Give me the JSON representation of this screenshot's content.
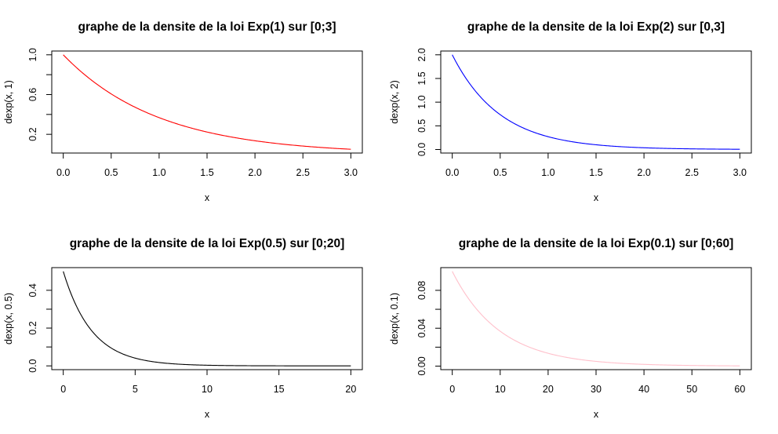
{
  "chart_data": [
    {
      "type": "line",
      "title": "graphe de la densite de la loi Exp(1) sur [0;3]",
      "xlabel": "x",
      "ylabel": "dexp(x, 1)",
      "rate": 1,
      "xlim": [
        0,
        3
      ],
      "ylim": [
        0.0498,
        1.0
      ],
      "xticks": [
        "0.0",
        "0.5",
        "1.0",
        "1.5",
        "2.0",
        "2.5",
        "3.0"
      ],
      "xtick_values": [
        0,
        0.5,
        1,
        1.5,
        2,
        2.5,
        3
      ],
      "yticks": [
        "0.2",
        "0.6",
        "1.0"
      ],
      "ytick_values": [
        0.2,
        0.6,
        1.0
      ],
      "yminor_values": [
        0.4,
        0.8
      ],
      "color": "#ff0000",
      "series": [
        {
          "x": [
            0,
            0.25,
            0.5,
            0.75,
            1,
            1.25,
            1.5,
            1.75,
            2,
            2.25,
            2.5,
            2.75,
            3
          ],
          "values": [
            1.0,
            0.779,
            0.607,
            0.472,
            0.368,
            0.287,
            0.223,
            0.174,
            0.135,
            0.105,
            0.082,
            0.064,
            0.05
          ]
        }
      ],
      "grid": false
    },
    {
      "type": "line",
      "title": "graphe de la densite de la loi Exp(2) sur [0,3]",
      "xlabel": "x",
      "ylabel": "dexp(x, 2)",
      "rate": 2,
      "xlim": [
        0,
        3
      ],
      "ylim": [
        0.005,
        2.0
      ],
      "xticks": [
        "0.0",
        "0.5",
        "1.0",
        "1.5",
        "2.0",
        "2.5",
        "3.0"
      ],
      "xtick_values": [
        0,
        0.5,
        1,
        1.5,
        2,
        2.5,
        3
      ],
      "yticks": [
        "0.0",
        "0.5",
        "1.0",
        "1.5",
        "2.0"
      ],
      "ytick_values": [
        0,
        0.5,
        1,
        1.5,
        2
      ],
      "yminor_values": [],
      "color": "#0000ff",
      "series": [
        {
          "x": [
            0,
            0.25,
            0.5,
            0.75,
            1,
            1.25,
            1.5,
            1.75,
            2,
            2.25,
            2.5,
            2.75,
            3
          ],
          "values": [
            2.0,
            1.213,
            0.736,
            0.446,
            0.271,
            0.164,
            0.1,
            0.06,
            0.037,
            0.022,
            0.013,
            0.008,
            0.005
          ]
        }
      ],
      "grid": false
    },
    {
      "type": "line",
      "title": "graphe de la densite de la loi Exp(0.5) sur [0;20]",
      "xlabel": "x",
      "ylabel": "dexp(x, 0.5)",
      "rate": 0.5,
      "xlim": [
        0,
        20
      ],
      "ylim": [
        2.27e-05,
        0.5
      ],
      "xticks": [
        "0",
        "5",
        "10",
        "15",
        "20"
      ],
      "xtick_values": [
        0,
        5,
        10,
        15,
        20
      ],
      "yticks": [
        "0.0",
        "0.2",
        "0.4"
      ],
      "ytick_values": [
        0,
        0.2,
        0.4
      ],
      "yminor_values": [
        0.1,
        0.3
      ],
      "color": "#000000",
      "series": [
        {
          "x": [
            0,
            1,
            2,
            3,
            4,
            5,
            6,
            8,
            10,
            12,
            15,
            20
          ],
          "values": [
            0.5,
            0.303,
            0.184,
            0.112,
            0.068,
            0.041,
            0.025,
            0.009,
            0.003,
            0.001,
            0.0003,
            2e-05
          ]
        }
      ],
      "grid": false
    },
    {
      "type": "line",
      "title": "graphe de la densite de la loi Exp(0.1) sur [0;60]",
      "xlabel": "x",
      "ylabel": "dexp(x, 0.1)",
      "rate": 0.1,
      "xlim": [
        0,
        60
      ],
      "ylim": [
        0.000248,
        0.1
      ],
      "xticks": [
        "0",
        "10",
        "20",
        "30",
        "40",
        "50",
        "60"
      ],
      "xtick_values": [
        0,
        10,
        20,
        30,
        40,
        50,
        60
      ],
      "yticks": [
        "0.00",
        "0.04",
        "0.08"
      ],
      "ytick_values": [
        0,
        0.04,
        0.08
      ],
      "yminor_values": [
        0.02,
        0.06
      ],
      "color": "#ffc0cb",
      "series": [
        {
          "x": [
            0,
            5,
            10,
            15,
            20,
            25,
            30,
            35,
            40,
            45,
            50,
            55,
            60
          ],
          "values": [
            0.1,
            0.061,
            0.037,
            0.022,
            0.014,
            0.008,
            0.005,
            0.003,
            0.002,
            0.001,
            0.0007,
            0.0004,
            0.0002
          ]
        }
      ],
      "grid": false
    }
  ]
}
